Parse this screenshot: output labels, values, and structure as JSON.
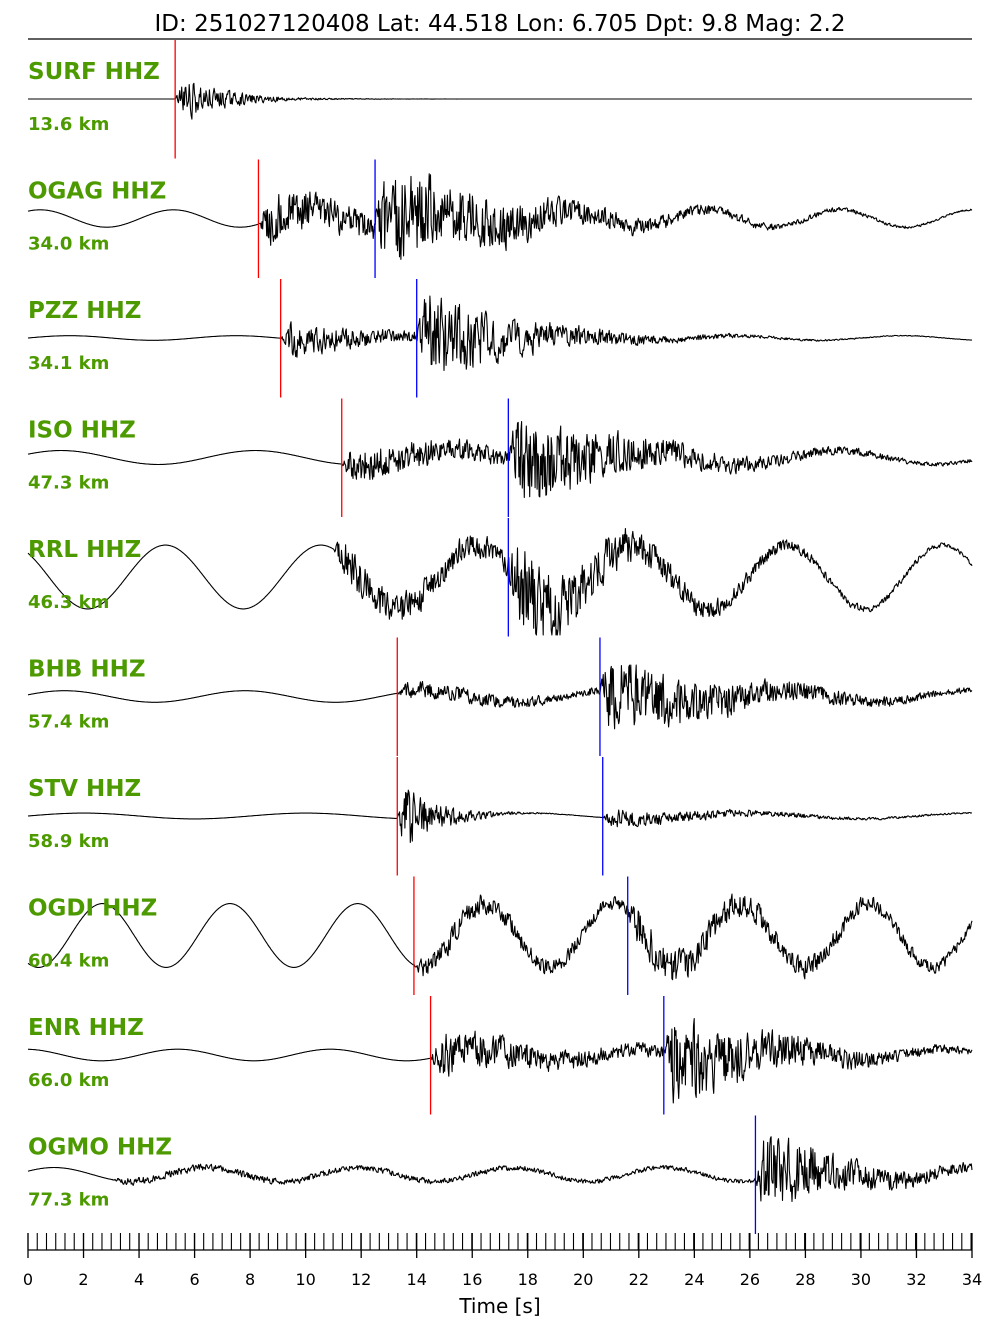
{
  "title": "ID: 251027120408 Lat:  44.518 Lon:   6.705 Dpt:     9.8 Mag:   2.2",
  "chart_data": {
    "type": "line",
    "xlabel": "Time [s]",
    "xlim": [
      0,
      34
    ],
    "xticks": [
      "0",
      "2",
      "4",
      "6",
      "8",
      "10",
      "12",
      "14",
      "16",
      "18",
      "20",
      "22",
      "24",
      "26",
      "28",
      "30",
      "32",
      "34"
    ],
    "minor_tick_step": 0.333,
    "colors": {
      "trace": "#000000",
      "label": "#4c9a00",
      "p_pick": "#ff0000",
      "s_pick": "#0000ff"
    },
    "series": [
      {
        "name": "SURF HHZ",
        "distance": "13.6 km",
        "p_pick": 5.3,
        "s_pick": null,
        "noise_amp": 0.0,
        "slow_waves": [],
        "bursts": [
          {
            "start": 5.3,
            "peak": 0.55,
            "decay": 1.6,
            "rough": 1.0
          }
        ],
        "trend": [
          0,
          0
        ],
        "amp_scale": 1.0
      },
      {
        "name": "OGAG HHZ",
        "distance": "34.0 km",
        "p_pick": 8.3,
        "s_pick": 12.5,
        "noise_amp": 0.0,
        "slow_waves": [
          {
            "amp": 0.15,
            "period": 4.8,
            "phase": 1.0
          }
        ],
        "bursts": [
          {
            "start": 8.3,
            "peak": 0.55,
            "decay": 6.0,
            "rough": 1.0
          },
          {
            "start": 12.5,
            "peak": 0.85,
            "decay": 5.0,
            "rough": 1.0
          }
        ],
        "trend": [
          0,
          0
        ],
        "amp_scale": 1.0
      },
      {
        "name": "PZZ HHZ",
        "distance": "34.1 km",
        "p_pick": 9.1,
        "s_pick": 14.0,
        "noise_amp": 0.0,
        "slow_waves": [
          {
            "amp": 0.04,
            "period": 6.0,
            "phase": 0.0
          }
        ],
        "bursts": [
          {
            "start": 9.1,
            "peak": 0.4,
            "decay": 4.0,
            "rough": 1.0
          },
          {
            "start": 14.0,
            "peak": 0.95,
            "decay": 3.5,
            "rough": 1.0
          }
        ],
        "trend": [
          0,
          0
        ],
        "amp_scale": 1.0
      },
      {
        "name": "ISO HHZ",
        "distance": "47.3 km",
        "p_pick": 11.3,
        "s_pick": 17.3,
        "noise_amp": 0.0,
        "slow_waves": [
          {
            "amp": 0.12,
            "period": 7.0,
            "phase": 0.5
          }
        ],
        "bursts": [
          {
            "start": 11.3,
            "peak": 0.4,
            "decay": 8.0,
            "rough": 1.0
          },
          {
            "start": 17.3,
            "peak": 0.9,
            "decay": 4.0,
            "rough": 1.0
          }
        ],
        "trend": [
          0,
          0
        ],
        "amp_scale": 1.0
      },
      {
        "name": "RRL HHZ",
        "distance": "46.3 km",
        "p_pick": null,
        "s_pick": 17.3,
        "noise_amp": 0.0,
        "slow_waves": [
          {
            "amp": 0.55,
            "period": 5.6,
            "phase": 2.3
          }
        ],
        "bursts": [
          {
            "start": 11.0,
            "peak": 0.45,
            "decay": 9.0,
            "rough": 1.0
          },
          {
            "start": 17.3,
            "peak": 0.85,
            "decay": 3.5,
            "rough": 1.0
          }
        ],
        "trend": [
          0,
          0
        ],
        "amp_scale": 1.0
      },
      {
        "name": "BHB HHZ",
        "distance": "57.4 km",
        "p_pick": 13.3,
        "s_pick": 20.6,
        "noise_amp": 0.0,
        "slow_waves": [
          {
            "amp": 0.1,
            "period": 6.5,
            "phase": 0.3
          }
        ],
        "bursts": [
          {
            "start": 13.3,
            "peak": 0.2,
            "decay": 8.0,
            "rough": 1.0
          },
          {
            "start": 20.6,
            "peak": 0.85,
            "decay": 4.5,
            "rough": 1.0
          }
        ],
        "trend": [
          0,
          0
        ],
        "amp_scale": 1.0
      },
      {
        "name": "STV HHZ",
        "distance": "58.9 km",
        "p_pick": 13.3,
        "s_pick": 20.7,
        "noise_amp": 0.0,
        "slow_waves": [
          {
            "amp": 0.05,
            "period": 8.0,
            "phase": 0.0
          }
        ],
        "bursts": [
          {
            "start": 13.3,
            "peak": 1.0,
            "decay": 1.2,
            "rough": 1.0
          },
          {
            "start": 20.7,
            "peak": 0.2,
            "decay": 5.0,
            "rough": 1.0
          }
        ],
        "trend": [
          0,
          0
        ],
        "amp_scale": 1.0
      },
      {
        "name": "OGDI HHZ",
        "distance": "60.4 km",
        "p_pick": 13.9,
        "s_pick": 21.6,
        "noise_amp": 0.0,
        "slow_waves": [
          {
            "amp": 0.55,
            "period": 4.6,
            "phase": 4.2
          }
        ],
        "bursts": [
          {
            "start": 13.9,
            "peak": 0.25,
            "decay": 12.0,
            "rough": 1.0
          },
          {
            "start": 21.6,
            "peak": 0.3,
            "decay": 8.0,
            "rough": 1.0
          }
        ],
        "trend": [
          0,
          0
        ],
        "amp_scale": 1.0
      },
      {
        "name": "ENR HHZ",
        "distance": "66.0 km",
        "p_pick": 14.5,
        "s_pick": 22.9,
        "noise_amp": 0.0,
        "slow_waves": [
          {
            "amp": 0.1,
            "period": 5.5,
            "phase": 1.7
          }
        ],
        "bursts": [
          {
            "start": 14.5,
            "peak": 0.5,
            "decay": 6.0,
            "rough": 1.0
          },
          {
            "start": 22.9,
            "peak": 0.9,
            "decay": 4.0,
            "rough": 1.0
          }
        ],
        "trend": [
          0,
          0
        ],
        "amp_scale": 1.0
      },
      {
        "name": "OGMO HHZ",
        "distance": "77.3 km",
        "p_pick": null,
        "s_pick": 26.2,
        "noise_amp": 0.0,
        "slow_waves": [
          {
            "amp": 0.12,
            "period": 5.5,
            "phase": 0.5
          }
        ],
        "bursts": [
          {
            "start": 3.0,
            "peak": 0.08,
            "decay": 40.0,
            "rough": 1.0
          },
          {
            "start": 26.2,
            "peak": 0.95,
            "decay": 3.0,
            "rough": 1.0
          }
        ],
        "trend": [
          0,
          0
        ],
        "amp_scale": 1.0
      }
    ]
  }
}
